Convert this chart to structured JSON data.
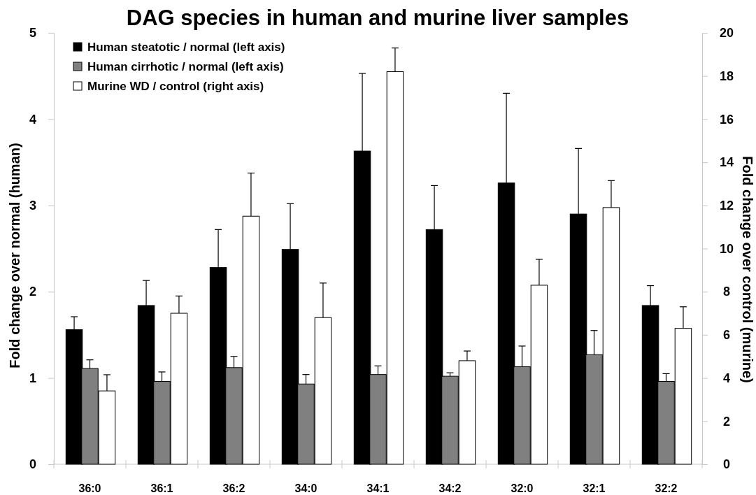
{
  "chart_data": {
    "type": "bar",
    "title": "DAG species in human and murine liver samples",
    "ylabel": "Fold change over normal (human)",
    "y2label": "Fold change over control (murine)",
    "categories": [
      "36:0",
      "36:1",
      "36:2",
      "34:0",
      "34:1",
      "34:2",
      "32:0",
      "32:1",
      "32:2"
    ],
    "ylim": [
      0,
      5
    ],
    "yticks": [
      0,
      1,
      2,
      3,
      4,
      5
    ],
    "y2lim": [
      0,
      20
    ],
    "y2ticks": [
      0,
      2,
      4,
      6,
      8,
      10,
      12,
      14,
      16,
      18,
      20
    ],
    "legend": "top left",
    "series": [
      {
        "name": "Human steatotic / normal (left axis)",
        "color": "#000000",
        "values": [
          1.56,
          1.84,
          2.28,
          2.49,
          3.63,
          2.72,
          3.26,
          2.9,
          1.84
        ],
        "errors": [
          [
            1.56,
            1.71
          ],
          [
            1.84,
            2.13
          ],
          [
            2.28,
            2.72
          ],
          [
            2.49,
            3.02
          ],
          [
            3.63,
            4.53
          ],
          [
            2.72,
            3.23
          ],
          [
            3.26,
            4.3
          ],
          [
            2.9,
            3.66
          ],
          [
            1.84,
            2.07
          ]
        ]
      },
      {
        "name": "Human cirrhotic / normal (left axis)",
        "color": "#808080",
        "values": [
          1.11,
          0.96,
          1.12,
          0.93,
          1.04,
          1.02,
          1.13,
          1.27,
          0.96
        ],
        "errors": [
          [
            1.11,
            1.21
          ],
          [
            0.96,
            1.07
          ],
          [
            1.12,
            1.25
          ],
          [
            0.93,
            1.04
          ],
          [
            1.04,
            1.14
          ],
          [
            1.02,
            1.06
          ],
          [
            1.13,
            1.37
          ],
          [
            1.27,
            1.55
          ],
          [
            0.96,
            1.05
          ]
        ]
      },
      {
        "name": "Murine WD / control (right axis)",
        "color": "#ffffff",
        "axis": "y2",
        "values": [
          3.4,
          7.0,
          11.5,
          6.8,
          18.2,
          4.8,
          8.3,
          11.9,
          6.3
        ],
        "errors": [
          [
            3.4,
            4.15
          ],
          [
            7.0,
            7.8
          ],
          [
            11.5,
            13.5
          ],
          [
            6.8,
            8.4
          ],
          [
            18.2,
            19.3
          ],
          [
            4.8,
            5.25
          ],
          [
            8.3,
            9.5
          ],
          [
            11.9,
            13.15
          ],
          [
            6.3,
            7.3
          ]
        ]
      }
    ]
  }
}
